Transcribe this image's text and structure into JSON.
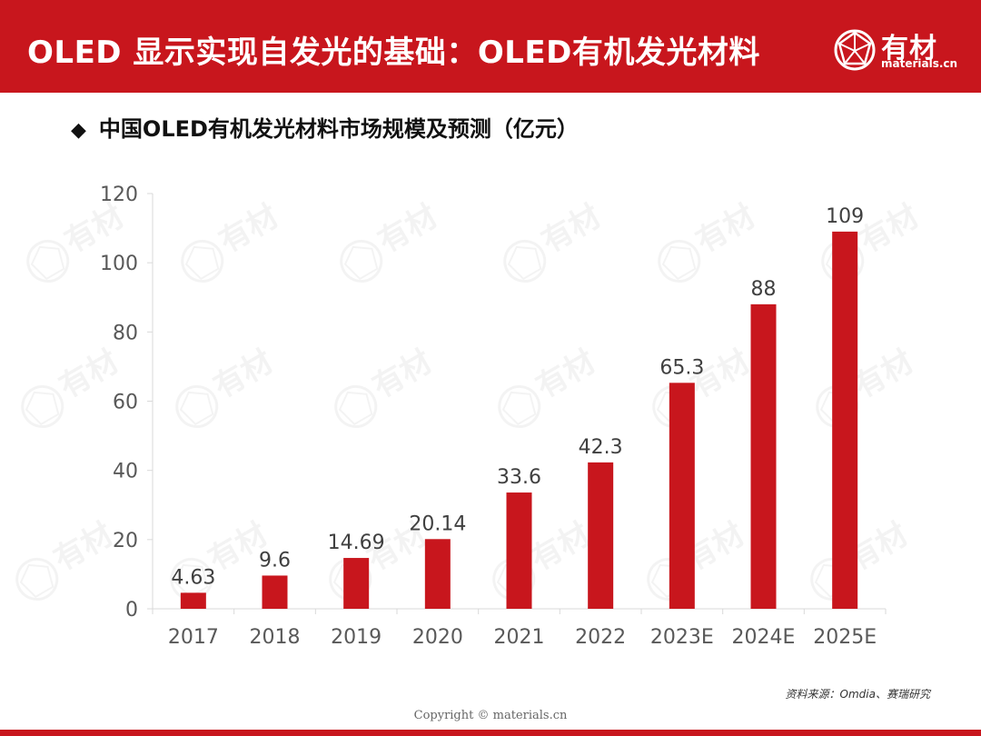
{
  "header": {
    "title": "OLED 显示实现自发光的基础：OLED有机发光材料",
    "brand_name": "有材",
    "brand_domain": "materials.cn"
  },
  "subtitle": {
    "bullet": "◆",
    "text": "中国OLED有机发光材料市场规模及预测（亿元）"
  },
  "chart_data": {
    "type": "bar",
    "title": "中国OLED有机发光材料市场规模及预测（亿元）",
    "categories": [
      "2017",
      "2018",
      "2019",
      "2020",
      "2021",
      "2022",
      "2023E",
      "2024E",
      "2025E"
    ],
    "values": [
      4.63,
      9.6,
      14.69,
      20.14,
      33.6,
      42.3,
      65.3,
      88,
      109
    ],
    "value_labels": [
      "4.63",
      "9.6",
      "14.69",
      "20.14",
      "33.6",
      "42.3",
      "65.3",
      "88",
      "109"
    ],
    "yticks": [
      0,
      20,
      40,
      60,
      80,
      100,
      120
    ],
    "ylim": [
      0,
      120
    ],
    "xlabel": "",
    "ylabel": "",
    "grid": false,
    "bar_color": "#c8161d"
  },
  "footer": {
    "source": "资料来源：Omdia、赛瑞研究",
    "copyright": "Copyright © materials.cn"
  },
  "colors": {
    "brand_red": "#c8161d",
    "text": "#111111",
    "axis": "#d9d9d9",
    "tick_text": "#595959"
  }
}
